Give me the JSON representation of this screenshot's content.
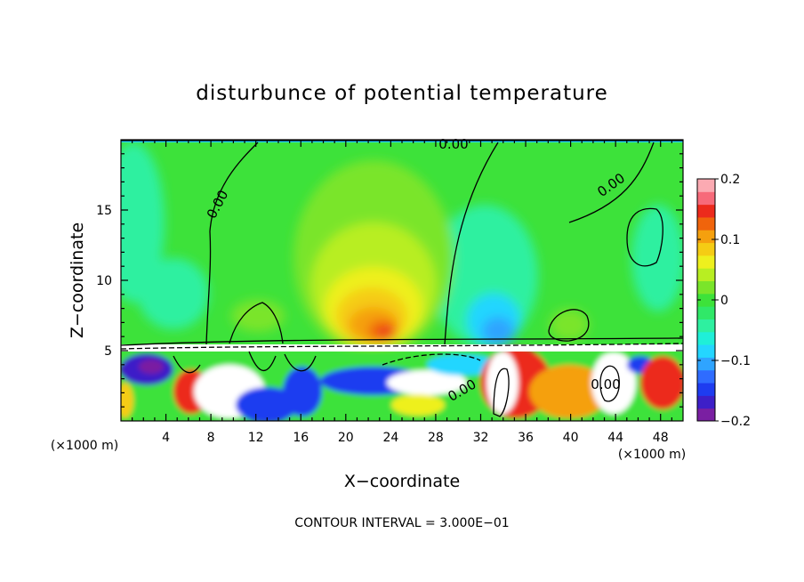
{
  "chart_data": {
    "type": "heatmap",
    "title": "disturbunce of potential temperature",
    "xlabel": "X−coordinate",
    "ylabel": "Z−coordinate",
    "x_unit": "(×1000 m)",
    "y_unit": "(×1000 m)",
    "xlim": [
      0,
      50
    ],
    "ylim": [
      0,
      20
    ],
    "x_ticks": [
      4,
      8,
      12,
      16,
      20,
      24,
      28,
      32,
      36,
      40,
      44,
      48
    ],
    "y_ticks": [
      5,
      10,
      15
    ],
    "contour_interval_text": "CONTOUR INTERVAL = 3.000E−01",
    "contour_labels": [
      "0.00",
      "0.00",
      "0.00",
      "0.00",
      "0.00"
    ],
    "colorbar": {
      "range": [
        -0.2,
        0.2
      ],
      "tick_labels": [
        "0.2",
        "0.1",
        "0",
        "−0.1",
        "−0.2"
      ],
      "tick_values": [
        0.2,
        0.1,
        0,
        -0.1,
        -0.2
      ],
      "colors": [
        "#7a1fa2",
        "#3d1fc8",
        "#1e3cf0",
        "#2f6cff",
        "#2fa4ff",
        "#24d6ff",
        "#1fefd8",
        "#2ef0a0",
        "#30e868",
        "#3de23a",
        "#7ae52a",
        "#b8ee22",
        "#eef01e",
        "#f5cc14",
        "#f5a00e",
        "#f0640c",
        "#ec2a1c",
        "#f76a7a",
        "#fbaab2"
      ]
    },
    "grid": false,
    "legend": "colorbar right"
  }
}
